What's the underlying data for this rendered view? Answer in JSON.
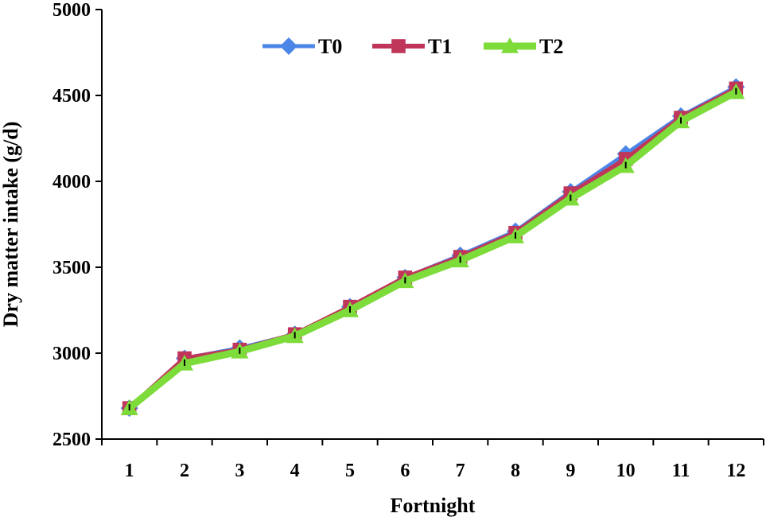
{
  "chart_data": {
    "type": "line",
    "xlabel": "Fortnight",
    "ylabel": "Dry matter intake (g/d)",
    "categories": [
      "1",
      "2",
      "3",
      "4",
      "5",
      "6",
      "7",
      "8",
      "9",
      "10",
      "11",
      "12"
    ],
    "ylim": [
      2500,
      5000
    ],
    "yticks": [
      "2500",
      "3000",
      "3500",
      "4000",
      "4500",
      "5000"
    ],
    "grid": false,
    "legend_position": "top-center",
    "series": [
      {
        "name": "T0",
        "color": "#4a86e8",
        "marker": "diamond",
        "values": [
          2680,
          2970,
          3030,
          3110,
          3270,
          3440,
          3570,
          3710,
          3940,
          4160,
          4380,
          4550
        ]
      },
      {
        "name": "T1",
        "color": "#c0365a",
        "marker": "square",
        "values": [
          2680,
          2970,
          3020,
          3110,
          3270,
          3440,
          3560,
          3700,
          3930,
          4130,
          4370,
          4540
        ]
      },
      {
        "name": "T2",
        "color": "#7ddb3a",
        "marker": "triangle",
        "values": [
          2680,
          2940,
          3010,
          3100,
          3250,
          3420,
          3540,
          3680,
          3900,
          4090,
          4350,
          4520
        ]
      }
    ]
  }
}
